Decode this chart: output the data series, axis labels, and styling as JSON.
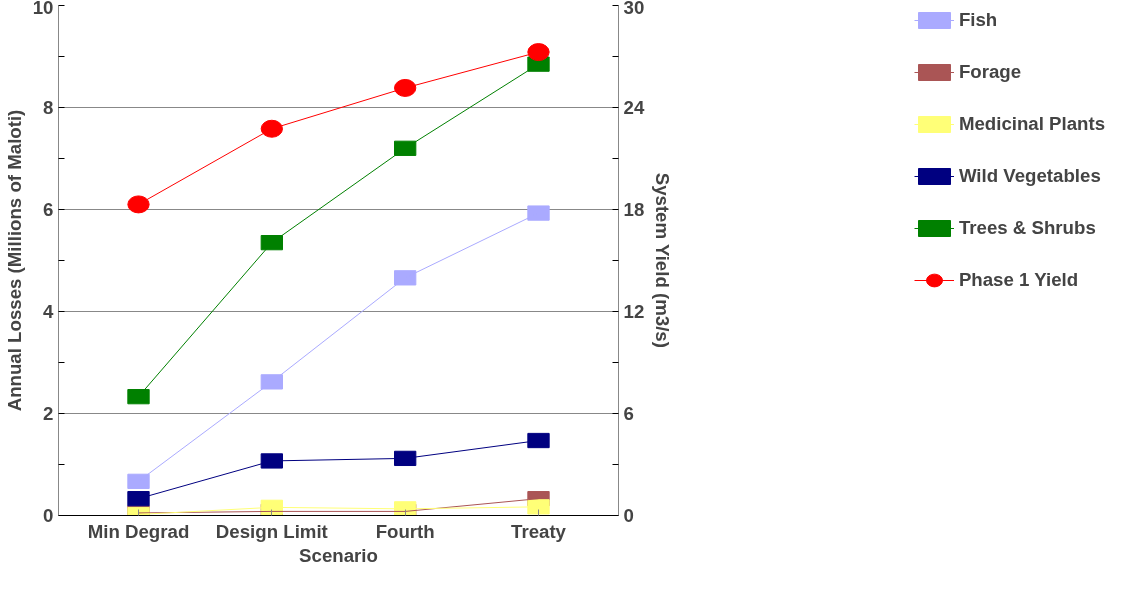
{
  "chart_data": {
    "type": "line",
    "xlabel": "Scenario",
    "ylabel": "Annual Losses (Millions of Maloti)",
    "y2label": "System Yield (m3/s)",
    "categories": [
      "Min Degrad",
      "Design Limit",
      "Fourth",
      "Treaty"
    ],
    "series": [
      {
        "name": "Fish",
        "color": "#aaaaff",
        "marker": "square",
        "values": [
          0.67,
          2.62,
          4.66,
          5.93
        ]
      },
      {
        "name": "Forage",
        "color": "#aa5555",
        "marker": "square",
        "values": [
          0.05,
          0.08,
          0.08,
          0.33
        ]
      },
      {
        "name": "Medicinal Plants",
        "color": "#ffff77",
        "marker": "square",
        "values": [
          0.02,
          0.16,
          0.13,
          0.17
        ]
      },
      {
        "name": "Wild Vegetables",
        "color": "#000080",
        "marker": "square",
        "values": [
          0.33,
          1.07,
          1.12,
          1.47
        ]
      },
      {
        "name": "Trees & Shrubs",
        "color": "#008000",
        "marker": "square",
        "values": [
          2.33,
          5.35,
          7.2,
          8.85
        ]
      },
      {
        "name": "Phase 1 Yield",
        "color": "#ff0000",
        "marker": "circle",
        "axis": "y2",
        "values": [
          18.3,
          22.75,
          25.15,
          27.26
        ]
      }
    ],
    "ylim": [
      0,
      10
    ],
    "yticks": [
      0,
      2,
      4,
      6,
      8,
      10
    ],
    "y2lim": [
      0,
      30
    ],
    "y2ticks": [
      0,
      6,
      12,
      18,
      24,
      30
    ],
    "grid": "y",
    "legend": "right"
  }
}
